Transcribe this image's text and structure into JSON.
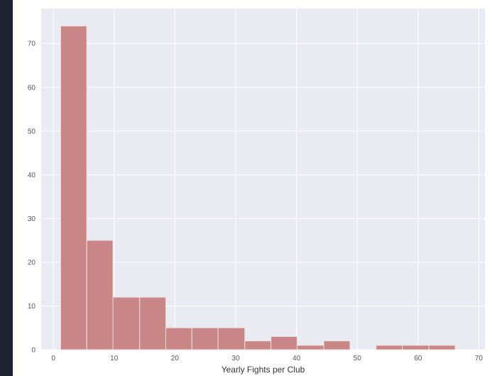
{
  "colors": {
    "page_background": "#1e2233",
    "figure_background": "#ffffff",
    "plot_background": "#eaeaf2",
    "grid": "#ffffff",
    "bar_fill": "#c98686",
    "bar_edge": "#eedede"
  },
  "chart_data": {
    "type": "bar",
    "subtype": "histogram",
    "xlabel": "Yearly Fights per Club",
    "ylabel": "",
    "xlim": [
      -2,
      71
    ],
    "ylim": [
      0,
      78
    ],
    "grid": true,
    "x_ticks": [
      0,
      10,
      20,
      30,
      40,
      50,
      60,
      70
    ],
    "x_tick_labels": [
      "0",
      "10",
      "20",
      "30",
      "40",
      "50",
      "60",
      "70"
    ],
    "y_ticks": [
      0,
      10,
      20,
      30,
      40,
      50,
      60,
      70
    ],
    "y_tick_labels": [
      "0",
      "10",
      "20",
      "30",
      "40",
      "50",
      "60",
      "70"
    ],
    "bins": [
      {
        "start": 1.2,
        "end": 5.5,
        "count": 74
      },
      {
        "start": 5.5,
        "end": 9.8,
        "count": 25
      },
      {
        "start": 9.8,
        "end": 14.2,
        "count": 12
      },
      {
        "start": 14.2,
        "end": 18.5,
        "count": 12
      },
      {
        "start": 18.5,
        "end": 22.8,
        "count": 5
      },
      {
        "start": 22.8,
        "end": 27.1,
        "count": 5
      },
      {
        "start": 27.1,
        "end": 31.5,
        "count": 5
      },
      {
        "start": 31.5,
        "end": 35.8,
        "count": 2
      },
      {
        "start": 35.8,
        "end": 40.1,
        "count": 3
      },
      {
        "start": 40.1,
        "end": 44.5,
        "count": 1
      },
      {
        "start": 44.5,
        "end": 48.8,
        "count": 2
      },
      {
        "start": 48.8,
        "end": 53.1,
        "count": 0
      },
      {
        "start": 53.1,
        "end": 57.4,
        "count": 1
      },
      {
        "start": 57.4,
        "end": 61.8,
        "count": 1
      },
      {
        "start": 61.8,
        "end": 66.1,
        "count": 1
      }
    ]
  }
}
